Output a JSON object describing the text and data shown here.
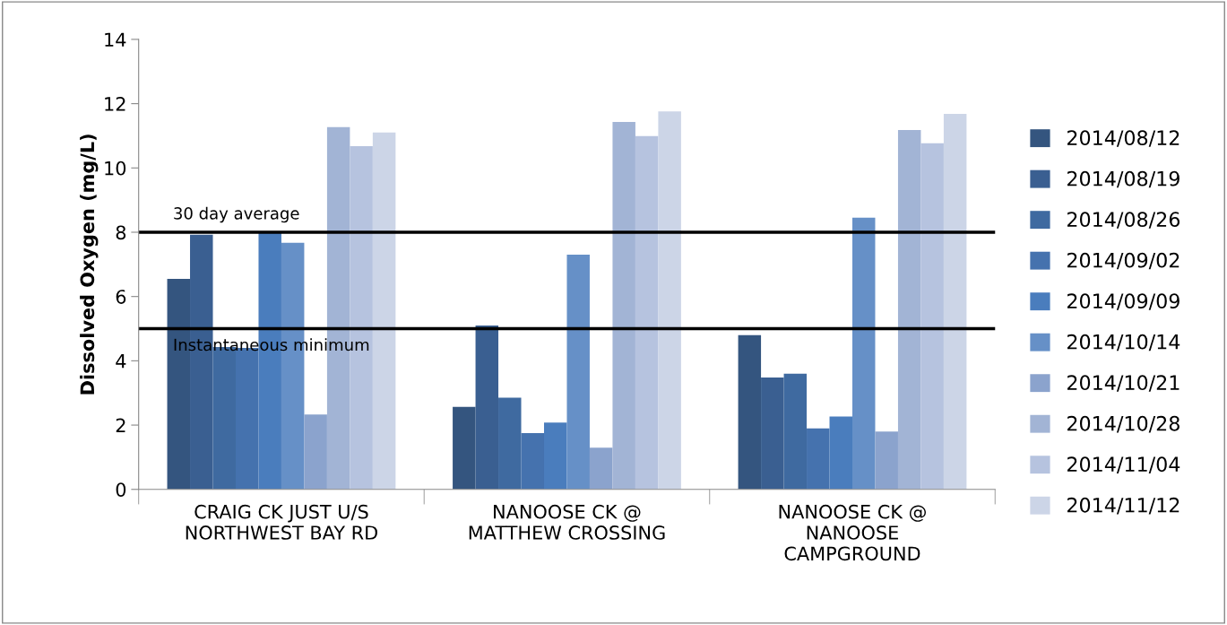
{
  "chart_data": {
    "type": "bar",
    "ylabel": "Dissolved Oxygen (mg/L)",
    "categories": [
      "CRAIG CK JUST U/S\nNORTHWEST BAY RD",
      "NANOOSE CK @\nMATTHEW CROSSING",
      "NANOOSE CK @\nNANOOSE\nCAMPGROUND"
    ],
    "series": [
      {
        "name": "2014/08/12",
        "color": "#34557f",
        "values": [
          6.55,
          2.57,
          4.8
        ]
      },
      {
        "name": "2014/08/19",
        "color": "#3a5f91",
        "values": [
          7.92,
          5.1,
          3.48
        ]
      },
      {
        "name": "2014/08/26",
        "color": "#3f6aa0",
        "values": [
          4.43,
          2.85,
          3.6
        ]
      },
      {
        "name": "2014/09/02",
        "color": "#4572ae",
        "values": [
          4.4,
          1.75,
          1.9
        ]
      },
      {
        "name": "2014/09/09",
        "color": "#4a7dbd",
        "values": [
          8.0,
          2.08,
          2.27
        ]
      },
      {
        "name": "2014/10/14",
        "color": "#6690c7",
        "values": [
          7.67,
          7.3,
          8.45
        ]
      },
      {
        "name": "2014/10/21",
        "color": "#8ba3cd",
        "values": [
          2.33,
          1.3,
          1.8
        ]
      },
      {
        "name": "2014/10/28",
        "color": "#a2b4d5",
        "values": [
          11.27,
          11.43,
          11.18
        ]
      },
      {
        "name": "2014/11/04",
        "color": "#b6c3df",
        "values": [
          10.68,
          10.99,
          10.77
        ]
      },
      {
        "name": "2014/11/12",
        "color": "#ccd5e7",
        "values": [
          11.1,
          11.76,
          11.68
        ]
      }
    ],
    "ylim": [
      0,
      14
    ],
    "yticks": [
      0,
      2,
      4,
      6,
      8,
      10,
      12,
      14
    ],
    "grid": false,
    "legend": "right",
    "ref_lines": [
      {
        "axis": "y",
        "value": 8,
        "label": "30 day average",
        "color": "#000000"
      },
      {
        "axis": "y",
        "value": 5,
        "label": "Instantaneous minimum",
        "color": "#000000"
      }
    ]
  }
}
